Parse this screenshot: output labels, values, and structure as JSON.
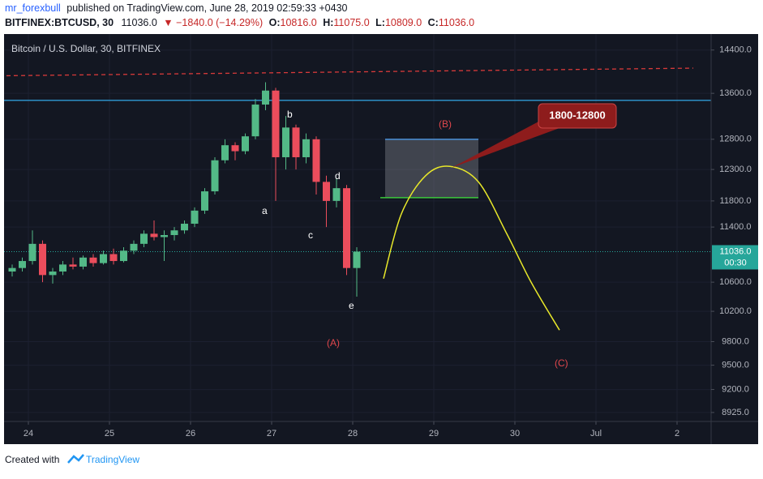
{
  "header": {
    "author": "mr_forexbull",
    "published": "published on TradingView.com, June 28, 2019 02:59:33 +0430",
    "symbol": "BITFINEX:BTCUSD, 30",
    "last": "11036.0",
    "change": "▼ −1840.0 (−14.29%)",
    "quote": [
      {
        "label": "O:",
        "value": "10816.0"
      },
      {
        "label": "H:",
        "value": "11075.0"
      },
      {
        "label": "L:",
        "value": "10809.0"
      },
      {
        "label": "C:",
        "value": "11036.0"
      }
    ]
  },
  "footer": {
    "created": "Created with",
    "brand": "TradingView"
  },
  "chart_data": {
    "type": "candlestick",
    "title": "Bitcoin / U.S. Dollar, 30, BITFINEX",
    "x": [
      23.8,
      23.925,
      24.05,
      24.175,
      24.3,
      24.425,
      24.55,
      24.675,
      24.8,
      24.925,
      25.05,
      25.175,
      25.3,
      25.425,
      25.55,
      25.675,
      25.8,
      25.925,
      26.05,
      26.175,
      26.3,
      26.425,
      26.55,
      26.675,
      26.8,
      26.925,
      27.05,
      27.175,
      27.3,
      27.425,
      27.55,
      27.675,
      27.8,
      27.925,
      28.05
    ],
    "open": [
      10750,
      10800,
      10900,
      11150,
      10700,
      10750,
      10850,
      10820,
      10950,
      10870,
      11000,
      10900,
      11050,
      11150,
      11300,
      11250,
      11280,
      11350,
      11450,
      11650,
      11950,
      12450,
      12700,
      12600,
      12850,
      13400,
      13650,
      12500,
      13000,
      12500,
      12800,
      12100,
      11800,
      12000,
      10800
    ],
    "high": [
      10850,
      10950,
      11350,
      11200,
      10800,
      10900,
      10950,
      10980,
      11000,
      11050,
      11080,
      11100,
      11200,
      11350,
      11500,
      11350,
      11400,
      11500,
      11700,
      12000,
      12500,
      12800,
      12750,
      12900,
      13500,
      13800,
      13700,
      13200,
      13050,
      12900,
      12850,
      12200,
      12150,
      12050,
      11100
    ],
    "low": [
      10680,
      10750,
      10850,
      10600,
      10580,
      10700,
      10780,
      10780,
      10820,
      10850,
      10850,
      10880,
      11000,
      11100,
      11200,
      10900,
      11200,
      11300,
      11400,
      11600,
      11900,
      12400,
      12450,
      12550,
      12800,
      13300,
      11800,
      12300,
      12300,
      12400,
      11900,
      11400,
      11700,
      10700,
      10400
    ],
    "close": [
      10800,
      10900,
      11150,
      10700,
      10750,
      10850,
      10820,
      10950,
      10870,
      11000,
      10900,
      11050,
      11150,
      11300,
      11250,
      11280,
      11350,
      11450,
      11650,
      11950,
      12450,
      12700,
      12600,
      12850,
      13400,
      13650,
      12500,
      13000,
      12500,
      12800,
      12100,
      11800,
      12000,
      10800,
      11036
    ],
    "up_color": "#53b987",
    "down_color": "#eb4d5c",
    "log_scale": true,
    "grid": true,
    "xlim": [
      23.73,
      32.42
    ],
    "xticks": [
      24,
      25,
      26,
      27,
      28,
      29,
      30,
      {
        "value": 31,
        "label": "Jul"
      },
      {
        "value": 32,
        "label": "2"
      }
    ],
    "ylim": [
      8820,
      14660
    ],
    "yticks": [
      {
        "value": 14400,
        "label": "14400.0"
      },
      {
        "value": 13600,
        "label": "13600.0"
      },
      {
        "value": 12800,
        "label": "12800.0"
      },
      {
        "value": 12300,
        "label": "12300.0"
      },
      {
        "value": 11800,
        "label": "11800.0"
      },
      {
        "value": 11400,
        "label": "11400.0"
      },
      {
        "value": 10600,
        "label": "10600.0"
      },
      {
        "value": 10200,
        "label": "10200.0"
      },
      {
        "value": 9800,
        "label": "9800.0"
      },
      {
        "value": 9500,
        "label": "9500.0"
      },
      {
        "value": 9200,
        "label": "9200.0"
      },
      {
        "value": 8925,
        "label": "8925.0"
      }
    ],
    "last_price": {
      "value": 11036,
      "label": "11036.0"
    },
    "countdown": "00:30",
    "horizontal_line": {
      "value": 13475,
      "color": "#2f9bd5"
    },
    "trend_line": {
      "x": [
        23.73,
        32.2
      ],
      "values": [
        13920,
        14060
      ],
      "color": "#d83a3a"
    },
    "box": {
      "x": [
        28.4,
        29.55
      ],
      "values": [
        11850,
        12800
      ]
    },
    "curve": {
      "x": [
        28.38,
        28.6,
        28.9,
        29.2,
        29.55,
        29.9,
        30.2,
        30.55
      ],
      "values": [
        10650,
        11600,
        12200,
        12350,
        12100,
        11300,
        10600,
        9950
      ],
      "color": "#e8e82a"
    },
    "annotations": {
      "a": "a",
      "b": "b",
      "c": "c",
      "d": "d",
      "e": "e",
      "A": "(A)",
      "B": "(B)",
      "C": "(C)",
      "target": "1800-12800"
    }
  }
}
